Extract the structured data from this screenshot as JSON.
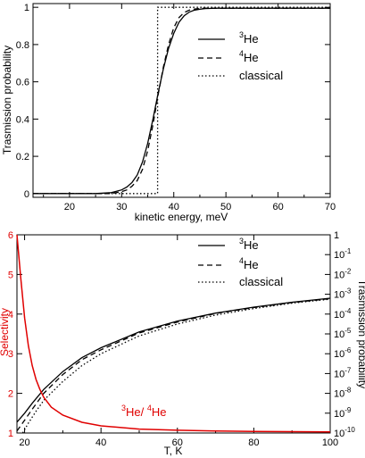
{
  "chart_data": [
    {
      "type": "line",
      "xlabel": "kinetic energy, meV",
      "ylabel": "Trasmission probability",
      "xlim": [
        13,
        70
      ],
      "ylim": [
        -0.02,
        1.02
      ],
      "x_ticks": [
        20,
        30,
        40,
        50,
        60,
        70
      ],
      "y_ticks": [
        0,
        0.2,
        0.4,
        0.6,
        0.8,
        1
      ],
      "x_tick_labels": [
        "20",
        "30",
        "40",
        "50",
        "60",
        "70"
      ],
      "y_tick_labels": [
        "0",
        "0.2",
        "0.4",
        "0.6",
        "0.8",
        "1"
      ],
      "legend": {
        "position": "top-right",
        "entries": [
          {
            "sup": "3",
            "base": "He",
            "style": "solid"
          },
          {
            "sup": "4",
            "base": "He",
            "style": "dashed"
          },
          {
            "text": "classical",
            "style": "dotted"
          }
        ]
      },
      "series": [
        {
          "style": "solid",
          "x": [
            13,
            25,
            28,
            30,
            31,
            32,
            33,
            34,
            35,
            36,
            37,
            38,
            39,
            40,
            41,
            42,
            43,
            44,
            45,
            46,
            48,
            50,
            55,
            60,
            70
          ],
          "y": [
            0,
            0,
            0.005,
            0.02,
            0.035,
            0.06,
            0.1,
            0.17,
            0.27,
            0.4,
            0.54,
            0.67,
            0.78,
            0.86,
            0.92,
            0.955,
            0.975,
            0.985,
            0.99,
            0.993,
            0.995,
            0.995,
            0.995,
            0.995,
            0.995
          ]
        },
        {
          "style": "dashed",
          "x": [
            13,
            28,
            30,
            31,
            32,
            33,
            34,
            35,
            36,
            37,
            38,
            39,
            40,
            41,
            42,
            43,
            44,
            45,
            46,
            48,
            50,
            55,
            60,
            70
          ],
          "y": [
            0,
            0,
            0.01,
            0.02,
            0.04,
            0.07,
            0.13,
            0.23,
            0.37,
            0.53,
            0.68,
            0.8,
            0.89,
            0.945,
            0.972,
            0.985,
            0.991,
            0.994,
            0.995,
            0.995,
            0.995,
            0.995,
            0.995,
            0.995
          ]
        },
        {
          "style": "dotted",
          "x": [
            13,
            36.9,
            36.9,
            70
          ],
          "y": [
            0,
            0,
            1,
            1
          ]
        }
      ]
    },
    {
      "type": "line",
      "xlabel": "T, K",
      "ylabel_left": "Selectivity",
      "ylabel_right": "Trasmission probability",
      "xlim": [
        18,
        100
      ],
      "ylim_left": [
        1,
        6
      ],
      "ylim_right_log10": [
        -10,
        0
      ],
      "x_ticks": [
        20,
        40,
        60,
        80,
        100
      ],
      "x_tick_labels": [
        "20",
        "40",
        "60",
        "80",
        "100"
      ],
      "y_ticks_left": [
        1,
        2,
        3,
        4,
        5,
        6
      ],
      "y_tick_labels_left": [
        "1",
        "2",
        "3",
        "4",
        "5",
        "6"
      ],
      "y_ticks_right": [
        {
          "base": "1",
          "exp": ""
        },
        {
          "base": "10",
          "exp": "-1"
        },
        {
          "base": "10",
          "exp": "-2"
        },
        {
          "base": "10",
          "exp": "-3"
        },
        {
          "base": "10",
          "exp": "-4"
        },
        {
          "base": "10",
          "exp": "-5"
        },
        {
          "base": "10",
          "exp": "-6"
        },
        {
          "base": "10",
          "exp": "-7"
        },
        {
          "base": "10",
          "exp": "-8"
        },
        {
          "base": "10",
          "exp": "-9"
        },
        {
          "base": "10",
          "exp": "-10"
        }
      ],
      "ratio_label": {
        "sup1": "3",
        "base1": "He/ ",
        "sup2": "4",
        "base2": "He"
      },
      "legend": {
        "position": "top-right",
        "entries": [
          {
            "sup": "3",
            "base": "He",
            "style": "solid"
          },
          {
            "sup": "4",
            "base": "He",
            "style": "dashed"
          },
          {
            "text": "classical",
            "style": "dotted"
          }
        ]
      },
      "colors": {
        "selectivity": "#e00000"
      },
      "series": [
        {
          "style": "solid",
          "axis": "right",
          "x": [
            18,
            20,
            22,
            25,
            30,
            35,
            40,
            50,
            60,
            70,
            80,
            90,
            100
          ],
          "y_log10": [
            -9.45,
            -9.0,
            -8.5,
            -7.8,
            -6.9,
            -6.2,
            -5.7,
            -4.9,
            -4.35,
            -3.95,
            -3.65,
            -3.4,
            -3.2
          ]
        },
        {
          "style": "dashed",
          "axis": "right",
          "x": [
            18,
            20,
            22,
            25,
            30,
            35,
            40,
            50,
            60,
            70,
            80,
            90,
            100
          ],
          "y_log10": [
            -9.9,
            -9.35,
            -8.8,
            -8.0,
            -7.05,
            -6.3,
            -5.8,
            -4.95,
            -4.4,
            -3.97,
            -3.67,
            -3.42,
            -3.22
          ]
        },
        {
          "style": "dotted",
          "axis": "right",
          "x": [
            19.5,
            21,
            23,
            25,
            30,
            35,
            40,
            50,
            60,
            70,
            80,
            90,
            100
          ],
          "y_log10": [
            -10,
            -9.5,
            -8.9,
            -8.35,
            -7.4,
            -6.6,
            -6.0,
            -5.1,
            -4.5,
            -4.05,
            -3.72,
            -3.45,
            -3.25
          ]
        },
        {
          "style": "solid",
          "axis": "left",
          "color": "#e00000",
          "x": [
            18,
            19,
            20,
            21,
            22,
            23,
            24,
            25,
            27,
            30,
            35,
            40,
            50,
            60,
            70,
            80,
            100
          ],
          "y": [
            6.0,
            4.9,
            3.9,
            3.2,
            2.7,
            2.35,
            2.1,
            1.9,
            1.65,
            1.45,
            1.27,
            1.18,
            1.1,
            1.07,
            1.05,
            1.04,
            1.03
          ]
        }
      ]
    }
  ]
}
